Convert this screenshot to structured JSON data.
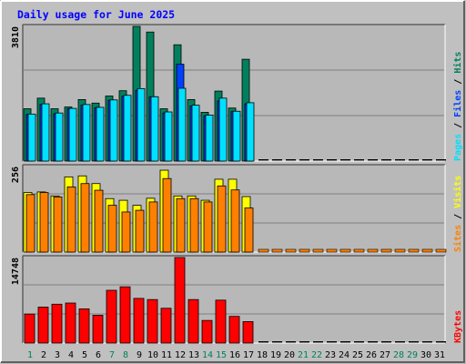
{
  "title": "Daily usage for June 2025",
  "colors": {
    "background": "#c0c0c0",
    "plot_bg": "#b8b8b8",
    "title": "#0000ff",
    "grid": "#808080",
    "hits": "#00805c",
    "files": "#0040ff",
    "pages": "#00e0ff",
    "visits": "#ffff00",
    "sites": "#ff8000",
    "kbytes": "#ff0000",
    "weekday_label": "#000000",
    "weekend_label": "#00805c"
  },
  "legend": {
    "top": [
      {
        "text": "Pages",
        "color": "#00e0ff"
      },
      {
        "text": " / ",
        "color": "#000000"
      },
      {
        "text": "Files",
        "color": "#0040ff"
      },
      {
        "text": " / ",
        "color": "#000000"
      },
      {
        "text": "Hits",
        "color": "#00805c"
      }
    ],
    "middle": [
      {
        "text": "Sites",
        "color": "#ff8000"
      },
      {
        "text": " / ",
        "color": "#000000"
      },
      {
        "text": "Visits",
        "color": "#ffff00"
      }
    ],
    "bottom": [
      {
        "text": "KBytes",
        "color": "#ff0000"
      }
    ]
  },
  "chart_data": [
    {
      "type": "bar",
      "panel": "top",
      "ymax_label": "3810",
      "ylim": [
        0,
        3810
      ],
      "categories": [
        "1",
        "2",
        "3",
        "4",
        "5",
        "6",
        "7",
        "8",
        "9",
        "10",
        "11",
        "12",
        "13",
        "14",
        "15",
        "16",
        "17",
        "18",
        "19",
        "20",
        "21",
        "22",
        "23",
        "24",
        "25",
        "26",
        "27",
        "28",
        "29",
        "30",
        "31"
      ],
      "weekend_days": [
        "1",
        "7",
        "8",
        "14",
        "15",
        "21",
        "22",
        "28",
        "29"
      ],
      "series": [
        {
          "name": "Hits",
          "values": [
            1480,
            1780,
            1480,
            1530,
            1740,
            1640,
            1840,
            1990,
            3810,
            3650,
            1480,
            3290,
            1740,
            1380,
            1980,
            1500,
            2880,
            0,
            0,
            0,
            0,
            0,
            0,
            0,
            0,
            0,
            0,
            0,
            0,
            0,
            0
          ]
        },
        {
          "name": "Files",
          "values": [
            1320,
            1600,
            1340,
            1480,
            1580,
            1510,
            1720,
            1840,
            2000,
            1820,
            1360,
            2740,
            1560,
            1280,
            1700,
            1400,
            1620,
            0,
            0,
            0,
            0,
            0,
            0,
            0,
            0,
            0,
            0,
            0,
            0,
            0,
            0
          ]
        },
        {
          "name": "Pages",
          "values": [
            1330,
            1620,
            1360,
            1490,
            1600,
            1520,
            1730,
            1860,
            2050,
            1820,
            1390,
            2060,
            1580,
            1300,
            1780,
            1410,
            1650,
            0,
            0,
            0,
            0,
            0,
            0,
            0,
            0,
            0,
            0,
            0,
            0,
            0,
            0
          ]
        }
      ]
    },
    {
      "type": "bar",
      "panel": "middle",
      "ymax_label": "256",
      "ylim": [
        0,
        256
      ],
      "series": [
        {
          "name": "Visits",
          "values": [
            178,
            180,
            168,
            225,
            228,
            205,
            160,
            155,
            140,
            161,
            245,
            168,
            168,
            155,
            218,
            218,
            166,
            0,
            0,
            0,
            0,
            0,
            0,
            0,
            0,
            0,
            0,
            0,
            0,
            0,
            0
          ]
        },
        {
          "name": "Sites",
          "values": [
            172,
            178,
            165,
            195,
            205,
            185,
            140,
            120,
            125,
            150,
            220,
            160,
            160,
            150,
            198,
            186,
            132,
            0,
            0,
            0,
            0,
            0,
            0,
            0,
            0,
            0,
            0,
            0,
            0,
            0,
            0
          ]
        }
      ]
    },
    {
      "type": "bar",
      "panel": "bottom",
      "ymax_label": "14748",
      "ylim": [
        0,
        14748
      ],
      "series": [
        {
          "name": "KBytes",
          "values": [
            5000,
            6200,
            6700,
            6900,
            5900,
            4800,
            9100,
            9700,
            7700,
            7500,
            6000,
            14748,
            7500,
            3900,
            7400,
            4600,
            3700,
            0,
            0,
            0,
            0,
            0,
            0,
            0,
            0,
            0,
            0,
            0,
            0,
            0,
            0
          ]
        }
      ]
    }
  ]
}
